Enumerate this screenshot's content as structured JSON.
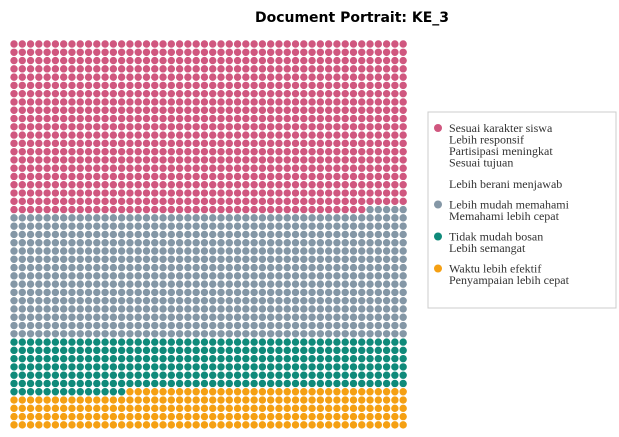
{
  "chart_data": {
    "type": "waffle",
    "title": "Document Portrait: KE_3",
    "columns": 48,
    "series": [
      {
        "color": "#d0577f",
        "value": 1003,
        "labels": [
          "Sesuai karakter siswa",
          "Lebih responsif",
          "Partisipasi meningkat",
          "Sesuai tujuan",
          "Lebih berani menjawab"
        ]
      },
      {
        "color": "#8497a6",
        "value": 725,
        "labels": [
          "Lebih mudah memahami",
          "Memahami lebih cepat"
        ]
      },
      {
        "color": "#0f8a7a",
        "value": 302,
        "labels": [
          "Tidak mudah bosan",
          "Lebih semangat"
        ]
      },
      {
        "color": "#f5a013",
        "value": 226,
        "labels": [
          "Waktu lebih efektif",
          "Penyampaian lebih cepat"
        ]
      }
    ]
  }
}
